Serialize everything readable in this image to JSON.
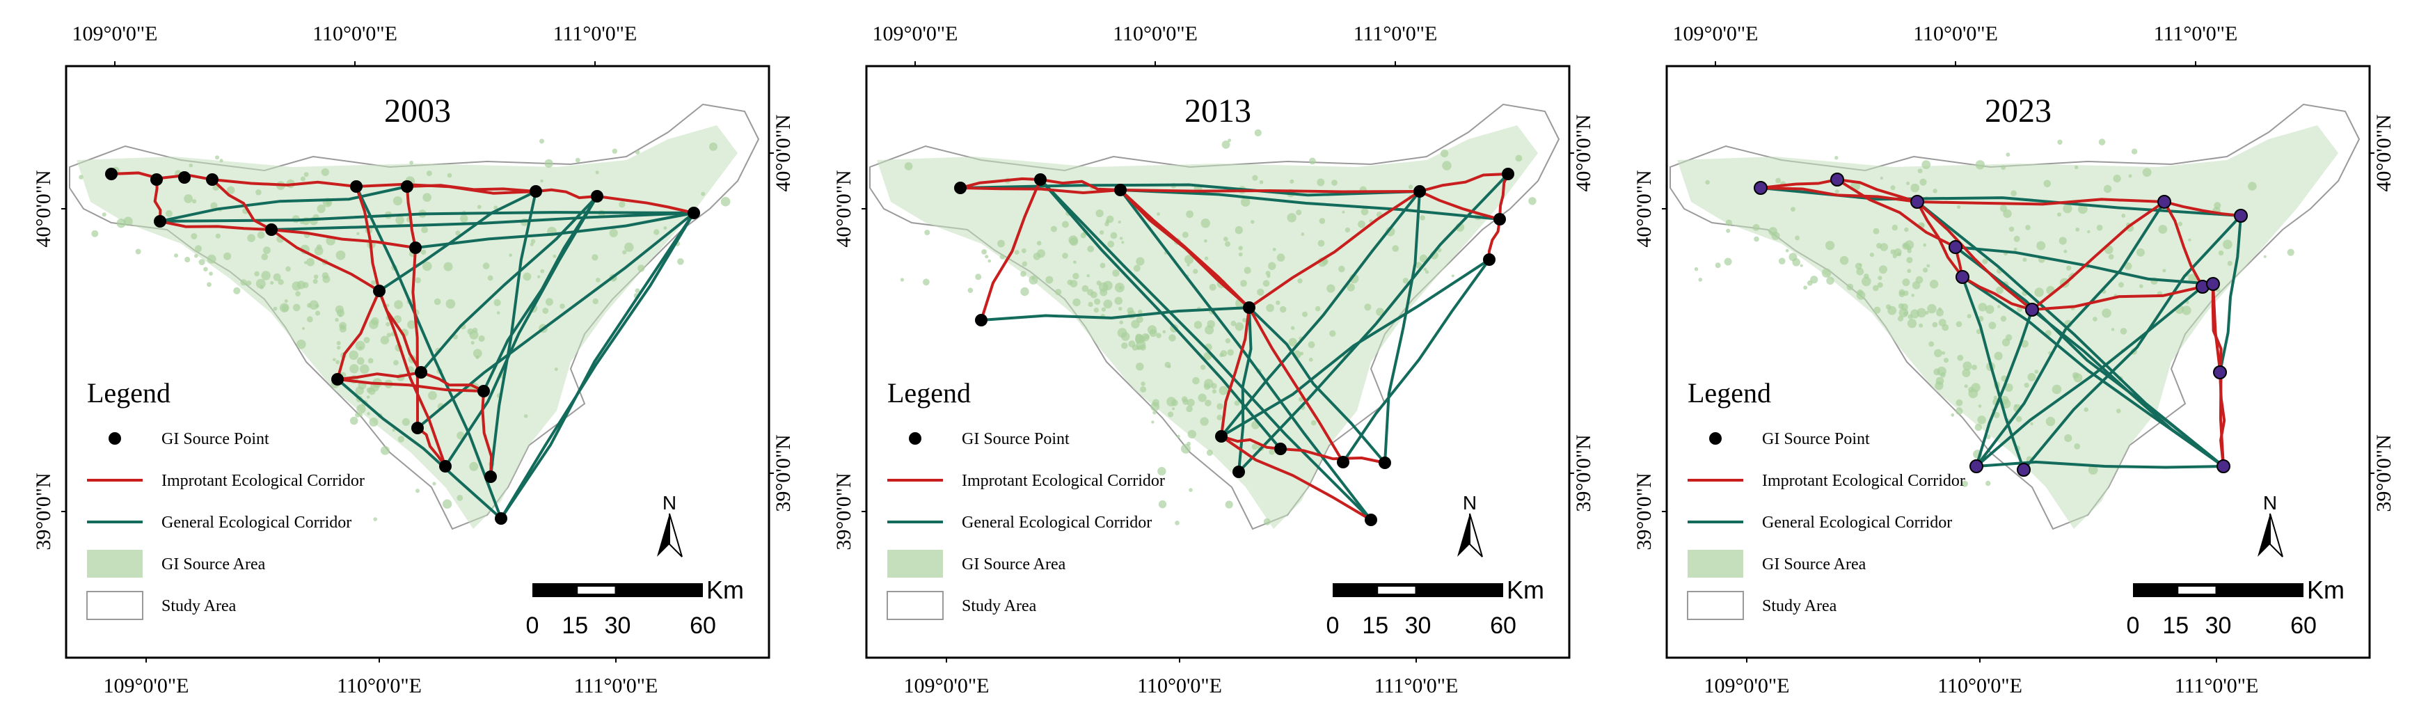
{
  "maps": [
    {
      "year": "2003",
      "top_ticks": [
        "109°0'0\"E",
        "110°0'0\"E",
        "111°0'0\"E"
      ],
      "bottom_ticks": [
        "109°0'0\"E",
        "110°0'0\"E",
        "111°0'0\"E"
      ],
      "left_ticks": [
        "40°0'0\"N",
        "39°0'0\"N"
      ],
      "right_ticks": [
        "40°0'0\"N",
        "39°0'0\"N"
      ]
    },
    {
      "year": "2013",
      "top_ticks": [
        "109°0'0\"E",
        "110°0'0\"E",
        "111°0'0\"E"
      ],
      "bottom_ticks": [
        "109°0'0\"E",
        "110°0'0\"E",
        "111°0'0\"E"
      ],
      "left_ticks": [
        "40°0'0\"N",
        "39°0'0\"N"
      ],
      "right_ticks": [
        "40°0'0\"N",
        "39°0'0\"N"
      ]
    },
    {
      "year": "2023",
      "top_ticks": [
        "109°0'0\"E",
        "110°0'0\"E",
        "111°0'0\"E"
      ],
      "bottom_ticks": [
        "109°0'0\"E",
        "110°0'0\"E",
        "111°0'0\"E"
      ],
      "left_ticks": [
        "40°0'0\"N",
        "39°0'0\"N"
      ],
      "right_ticks": [
        "40°0'0\"N",
        "39°0'0\"N"
      ]
    }
  ],
  "legend": {
    "title": "Legend",
    "items": [
      {
        "label": "GI Source Point",
        "kind": "point"
      },
      {
        "label": "Improtant Ecological Corridor",
        "kind": "important"
      },
      {
        "label": "General Ecological Corridor",
        "kind": "general"
      },
      {
        "label": "GI Source Area",
        "kind": "area"
      },
      {
        "label": "Study Area",
        "kind": "boundary"
      }
    ]
  },
  "scale_bar": {
    "unit": "Km",
    "labels": [
      "0",
      "15",
      "30",
      "60"
    ]
  },
  "north_arrow": {
    "label": "N"
  },
  "colors": {
    "important_corridor": "#c81e1e",
    "general_corridor": "#136b5c",
    "source_area": "#c5dfbd",
    "source_point": "#000000",
    "source_point_2023": "#4b2a8a",
    "boundary": "#9a9a9a"
  }
}
